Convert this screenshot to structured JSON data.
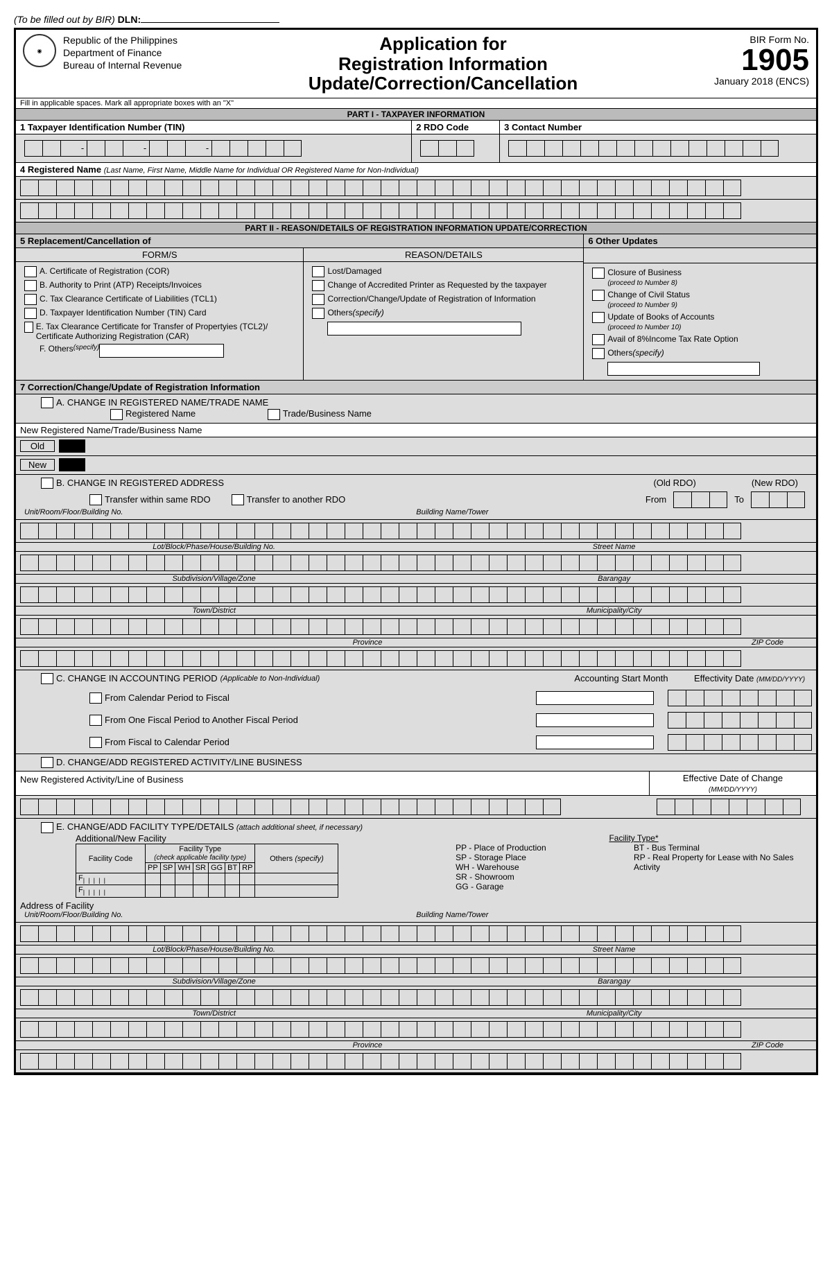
{
  "dln_prefix": "(To be filled out by BIR)",
  "dln_label": "DLN:",
  "header": {
    "org1": "Republic of the Philippines",
    "org2": "Department of Finance",
    "org3": "Bureau of Internal Revenue",
    "title1": "Application for",
    "title2": "Registration Information",
    "title3": "Update/Correction/Cancellation",
    "formno_lbl": "BIR Form No.",
    "formno": "1905",
    "formdate": "January 2018 (ENCS)"
  },
  "instruction": "Fill in applicable spaces. Mark all appropriate boxes with an \"X\"",
  "part1": {
    "header": "PART I - TAXPAYER INFORMATION",
    "f1": "1 Taxpayer Identification Number (TIN)",
    "f2": "2 RDO Code",
    "f3": "3 Contact Number",
    "f4": "4 Registered Name",
    "f4_note": "(Last Name, First Name, Middle Name for Individual OR Registered Name for Non-Individual)"
  },
  "part2": {
    "header": "PART II - REASON/DETAILS OF REGISTRATION INFORMATION UPDATE/CORRECTION",
    "f5": "5 Replacement/Cancellation of",
    "f6": "6 Other Updates",
    "forms_hdr": "FORM/S",
    "reason_hdr": "REASON/DETAILS",
    "forms": {
      "a": "A. Certificate of Registration (COR)",
      "b": "B. Authority to Print (ATP) Receipts/Invoices",
      "c": "C. Tax Clearance Certificate of Liabilities (TCL1)",
      "d": "D. Taxpayer Identification Number (TIN) Card",
      "e": "E. Tax Clearance Certificate for Transfer of Propertyies (TCL2)/ Certificate Authorizing Registration (CAR)",
      "f": "F. Others",
      "f_spec": "(specify)"
    },
    "reasons": {
      "a": "Lost/Damaged",
      "b": "Change of Accredited Printer as Requested by the taxpayer",
      "c": "Correction/Change/Update of Registration of Information",
      "d": "Others",
      "d_spec": "(specify)"
    },
    "updates": {
      "a": "Closure of Business",
      "a_note": "(proceed to Number 8)",
      "b": "Change of Civil Status",
      "b_note": "(proceed to Number 9)",
      "c": "Update of Books of Accounts",
      "c_note": "(proceed to Number 10)",
      "d": "Avail of 8%Income Tax Rate Option",
      "e": "Others",
      "e_spec": "(specify)"
    }
  },
  "f7": {
    "header": "7 Correction/Change/Update of Registration Information",
    "a": "A. CHANGE IN REGISTERED NAME/TRADE NAME",
    "reg_name": "Registered Name",
    "trade_name": "Trade/Business Name",
    "new_name": "New Registered Name/Trade/Business Name",
    "old": "Old",
    "new": "New",
    "b": "B. CHANGE IN  REGISTERED ADDRESS",
    "old_rdo": "(Old RDO)",
    "new_rdo": "(New RDO)",
    "transfer_same": "Transfer within same RDO",
    "transfer_other": "Transfer to another RDO",
    "from": "From",
    "to": "To",
    "addr1": "Unit/Room/Floor/Building No.",
    "addr2": "Building Name/Tower",
    "addr3": "Lot/Block/Phase/House/Building No.",
    "addr4": "Street Name",
    "addr5": "Subdivision/Village/Zone",
    "addr6": "Barangay",
    "addr7": "Town/District",
    "addr8": "Municipality/City",
    "addr9": "Province",
    "addr10": "ZIP Code",
    "c": "C. CHANGE IN ACCOUNTING PERIOD",
    "c_note": "(Applicable to Non-Individual)",
    "c_col1": "Accounting Start Month",
    "c_col2": "Effectivity Date",
    "c_col2_note": "(MM/DD/YYYY)",
    "c_opt1": "From Calendar Period to Fiscal",
    "c_opt2": "From One Fiscal Period to Another Fiscal Period",
    "c_opt3": "From Fiscal to Calendar Period",
    "d": "D. CHANGE/ADD REGISTERED ACTIVITY/LINE BUSINESS",
    "d_lbl": "New Registered Activity/Line of Business",
    "d_col2": "Effective Date of Change",
    "d_col2_note": "(MM/DD/YYYY)",
    "e": "E. CHANGE/ADD FACILITY TYPE/DETAILS",
    "e_note": "(attach additional sheet, if necessary)",
    "e_add": "Additional/New Facility",
    "e_ftype": "Facility Type*",
    "fac_code": "Facility Code",
    "fac_type": "Facility Type",
    "fac_check": "(check applicable facility type)",
    "fac_others": "Others",
    "fac_others_spec": "(specify)",
    "fac_cols": [
      "PP",
      "SP",
      "WH",
      "SR",
      "GG",
      "BT",
      "RP"
    ],
    "f_prefix": "F",
    "ftypes": {
      "pp": "PP - Place of Production",
      "sp": "SP - Storage Place",
      "wh": "WH - Warehouse",
      "sr": "SR - Showroom",
      "gg": "GG - Garage",
      "bt": "BT - Bus Terminal",
      "rp": "RP - Real Property for Lease with No Sales Activity"
    },
    "addr_fac": "Address of Facility"
  }
}
